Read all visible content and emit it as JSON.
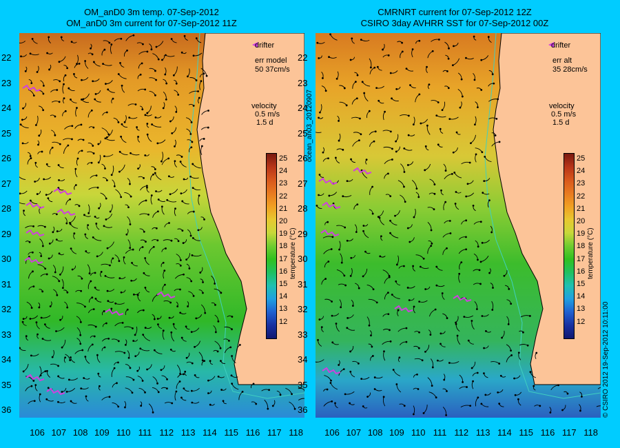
{
  "left": {
    "title_line1": "OM_anD0 3m temp. 07-Sep-2012",
    "title_line2": "OM_anD0 3m current for 07-Sep-2012 11Z",
    "drifter_label": "drifter",
    "err_label": "err model",
    "err_value": "50 37cm/s",
    "velocity_label": "velocity",
    "velocity_scale": "0.5 m/s",
    "velocity_time": "1.5 d"
  },
  "right": {
    "title_line1": "CMRNRT current for 07-Sep-2012 12Z",
    "title_line2": "CSIRO 3day AVHRR SST for 07-Sep-2012 00Z",
    "drifter_label": "drifter",
    "err_label": "err alt",
    "err_value": "35 28cm/s",
    "velocity_label": "velocity",
    "velocity_scale": "0.5 m/s",
    "velocity_time": "1.5 d"
  },
  "colorbar": {
    "label": "temperature (°C)",
    "ticks": [
      "25",
      "24",
      "23",
      "22",
      "21",
      "20",
      "19",
      "18",
      "17",
      "16",
      "15",
      "14",
      "13",
      "12"
    ],
    "colors": [
      "#7a1a10",
      "#b83518",
      "#d8581c",
      "#e87a20",
      "#f0a022",
      "#e8c830",
      "#c8d83a",
      "#70cc30",
      "#30c020",
      "#20c060",
      "#20c0b0",
      "#20a0e0",
      "#2060d0",
      "#1830a0",
      "#101870"
    ]
  },
  "axes": {
    "lat_ticks": [
      "22",
      "23",
      "24",
      "25",
      "26",
      "27",
      "28",
      "29",
      "30",
      "31",
      "32",
      "33",
      "34",
      "35",
      "36"
    ],
    "lon_ticks": [
      "106",
      "107",
      "108",
      "109",
      "110",
      "111",
      "112",
      "113",
      "114",
      "115",
      "116",
      "117",
      "118"
    ]
  },
  "side_text_left": "ocean_an03_20120907",
  "side_text_right": "© CSIRO 2012   19-Sep-2012 10:11:00"
}
